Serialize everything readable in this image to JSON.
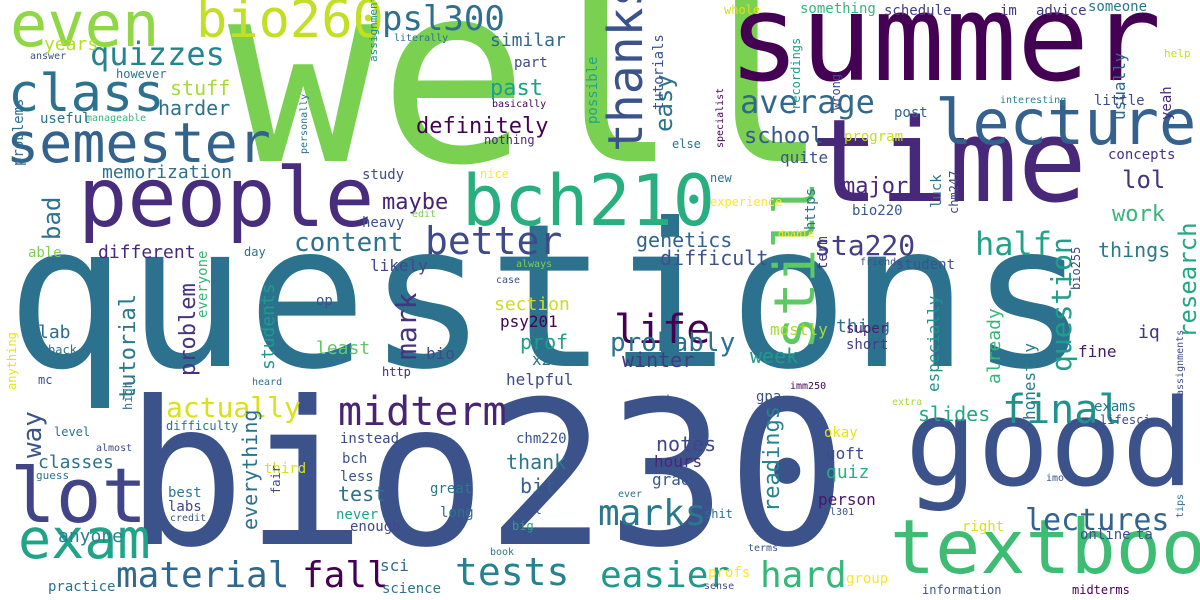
{
  "background": "#ffffff",
  "words": [
    {
      "text": "well",
      "color": "#7ad151"
    },
    {
      "text": "questions",
      "color": "#2c728e"
    },
    {
      "text": "bio230",
      "color": "#3b528b"
    },
    {
      "text": "summer",
      "color": "#440154"
    },
    {
      "text": "time",
      "color": "#482878"
    },
    {
      "text": "good",
      "color": "#3b528b"
    },
    {
      "text": "people",
      "color": "#472d7b"
    },
    {
      "text": "lecture",
      "color": "#34618d"
    },
    {
      "text": "textbook",
      "color": "#3fbc73"
    },
    {
      "text": "bch210",
      "color": "#29af7f"
    },
    {
      "text": "lot",
      "color": "#414487"
    },
    {
      "text": "semester",
      "color": "#33638d"
    },
    {
      "text": "exam",
      "color": "#20a386"
    },
    {
      "text": "even",
      "color": "#8fd744"
    },
    {
      "text": "class",
      "color": "#2c728e"
    },
    {
      "text": "bio260",
      "color": "#c2df23"
    },
    {
      "text": "midterm",
      "color": "#482475"
    },
    {
      "text": "still",
      "color": "#5ec962"
    },
    {
      "text": "thanks",
      "color": "#3b528b"
    },
    {
      "text": "tests",
      "color": "#26828e"
    },
    {
      "text": "material",
      "color": "#31688e"
    },
    {
      "text": "fall",
      "color": "#440154"
    },
    {
      "text": "easier",
      "color": "#1f9a8a"
    },
    {
      "text": "hard",
      "color": "#35b779"
    },
    {
      "text": "life",
      "color": "#440154"
    },
    {
      "text": "better",
      "color": "#3e4a89"
    },
    {
      "text": "final",
      "color": "#21918c"
    },
    {
      "text": "lectures",
      "color": "#33638d"
    },
    {
      "text": "marks",
      "color": "#2a788e"
    },
    {
      "text": "psl300",
      "color": "#2d708e"
    },
    {
      "text": "quizzes",
      "color": "#25858e"
    },
    {
      "text": "average",
      "color": "#31688e"
    },
    {
      "text": "half",
      "color": "#20a386"
    },
    {
      "text": "question",
      "color": "#1f9e89"
    },
    {
      "text": "research",
      "color": "#22a884"
    },
    {
      "text": "content",
      "color": "#2c728e"
    },
    {
      "text": "actually",
      "color": "#d8e219"
    },
    {
      "text": "way",
      "color": "#3b528b"
    },
    {
      "text": "mark",
      "color": "#46327e"
    },
    {
      "text": "probably",
      "color": "#2c728e"
    },
    {
      "text": "sta220",
      "color": "#433e85"
    },
    {
      "text": "definitely",
      "color": "#440154"
    },
    {
      "text": "past",
      "color": "#1f9e89"
    },
    {
      "text": "bad",
      "color": "#2c728e"
    },
    {
      "text": "easy",
      "color": "#2c728e"
    },
    {
      "text": "school",
      "color": "#38588c"
    },
    {
      "text": "major",
      "color": "#482878"
    },
    {
      "text": "lol",
      "color": "#46337f"
    },
    {
      "text": "work",
      "color": "#35b779"
    },
    {
      "text": "maybe",
      "color": "#482173"
    },
    {
      "text": "tutorial",
      "color": "#2a788e"
    },
    {
      "text": "problem",
      "color": "#46337f"
    },
    {
      "text": "everything",
      "color": "#2d708e"
    },
    {
      "text": "readings",
      "color": "#26828e"
    },
    {
      "text": "genetics",
      "color": "#33638d"
    },
    {
      "text": "difficult",
      "color": "#3b528b"
    },
    {
      "text": "memorization",
      "color": "#2d708e"
    },
    {
      "text": "different",
      "color": "#482878"
    },
    {
      "text": "harder",
      "color": "#2d708e"
    },
    {
      "text": "stuff",
      "color": "#a5db36"
    },
    {
      "text": "years",
      "color": "#b5de2b"
    },
    {
      "text": "similar",
      "color": "#31688e"
    },
    {
      "text": "students",
      "color": "#1f9a8a"
    },
    {
      "text": "prof",
      "color": "#1f9e89"
    },
    {
      "text": "section",
      "color": "#c8e020"
    },
    {
      "text": "winter",
      "color": "#443983"
    },
    {
      "text": "least",
      "color": "#5ec962"
    },
    {
      "text": "notes",
      "color": "#404688"
    },
    {
      "text": "thank",
      "color": "#2a788e"
    },
    {
      "text": "bit",
      "color": "#34618d"
    },
    {
      "text": "slides",
      "color": "#22a884"
    },
    {
      "text": "week",
      "color": "#1f9a8a"
    },
    {
      "text": "already",
      "color": "#35b779"
    },
    {
      "text": "things",
      "color": "#2a788e"
    },
    {
      "text": "test",
      "color": "#2d708e"
    },
    {
      "text": "classes",
      "color": "#2c728e"
    },
    {
      "text": "anyone",
      "color": "#26828e"
    },
    {
      "text": "lab",
      "color": "#31688e"
    },
    {
      "text": "likely",
      "color": "#3e4a89"
    },
    {
      "text": "helpful",
      "color": "#3e4a89"
    },
    {
      "text": "psy201",
      "color": "#440154"
    },
    {
      "text": "x200b",
      "color": "#2d708e"
    },
    {
      "text": "hours",
      "color": "#482878"
    },
    {
      "text": "grade",
      "color": "#38588c"
    },
    {
      "text": "quiz",
      "color": "#29af7f"
    },
    {
      "text": "uoft",
      "color": "#3e4a89"
    },
    {
      "text": "person",
      "color": "#481769"
    },
    {
      "text": "honestly",
      "color": "#287c8e"
    },
    {
      "text": "mostly",
      "color": "#a5db36"
    },
    {
      "text": "especially",
      "color": "#21918c"
    },
    {
      "text": "thing",
      "color": "#2c728e"
    },
    {
      "text": "super",
      "color": "#481f70"
    },
    {
      "text": "short",
      "color": "#433e85"
    },
    {
      "text": "fine",
      "color": "#48186a"
    },
    {
      "text": "iq",
      "color": "#46327e"
    },
    {
      "text": "exams",
      "color": "#2c728e"
    },
    {
      "text": "lifesci",
      "color": "#3e4a89"
    },
    {
      "text": "okay",
      "color": "#e5e419"
    },
    {
      "text": "term",
      "color": "#453781"
    },
    {
      "text": "bio255",
      "color": "#3e4a89"
    },
    {
      "text": "student",
      "color": "#3b528b"
    },
    {
      "text": "friends",
      "color": "#3b528b"
    },
    {
      "text": "help",
      "color": "#c8e020"
    },
    {
      "text": "yeah",
      "color": "#482878"
    },
    {
      "text": "usually",
      "color": "#31688e"
    },
    {
      "text": "someone",
      "color": "#2a788e"
    },
    {
      "text": "advice",
      "color": "#443983"
    },
    {
      "text": "im",
      "color": "#453781"
    },
    {
      "text": "schedule",
      "color": "#433e85"
    },
    {
      "text": "something",
      "color": "#35b779"
    },
    {
      "text": "whole",
      "color": "#d8e219"
    },
    {
      "text": "tutorials",
      "color": "#3b528b"
    },
    {
      "text": "possible",
      "color": "#20a386"
    },
    {
      "text": "recordings",
      "color": "#1f9e89"
    },
    {
      "text": "wrong",
      "color": "#3e4a89"
    },
    {
      "text": "specialist",
      "color": "#440154"
    },
    {
      "text": "interesting",
      "color": "#26828e"
    },
    {
      "text": "little",
      "color": "#3e4a89"
    },
    {
      "text": "concepts",
      "color": "#46327e"
    },
    {
      "text": "post",
      "color": "#33638d"
    },
    {
      "text": "program",
      "color": "#c2df23"
    },
    {
      "text": "quite",
      "color": "#3b528b"
    },
    {
      "text": "luck",
      "color": "#2d708e"
    },
    {
      "text": "chm247",
      "color": "#3e4a89"
    },
    {
      "text": "bio220",
      "color": "#38588c"
    },
    {
      "text": "https",
      "color": "#2c728e"
    },
    {
      "text": "experience",
      "color": "#fde725"
    },
    {
      "text": "doable",
      "color": "#fde725"
    },
    {
      "text": "new",
      "color": "#2d708e"
    },
    {
      "text": "else",
      "color": "#2d708e"
    },
    {
      "text": "nothing",
      "color": "#482878"
    },
    {
      "text": "basically",
      "color": "#440154"
    },
    {
      "text": "part",
      "color": "#3e4a89"
    },
    {
      "text": "literally",
      "color": "#2c728e"
    },
    {
      "text": "answer",
      "color": "#3b528b"
    },
    {
      "text": "however",
      "color": "#2c728e"
    },
    {
      "text": "useful",
      "color": "#2c728e"
    },
    {
      "text": "manageable",
      "color": "#35b779"
    },
    {
      "text": "assignment",
      "color": "#21918c"
    },
    {
      "text": "problems",
      "color": "#2d708e"
    },
    {
      "text": "study",
      "color": "#3e4a89"
    },
    {
      "text": "nice",
      "color": "#fde725"
    },
    {
      "text": "personally",
      "color": "#2c728e"
    },
    {
      "text": "heavy",
      "color": "#3b528b"
    },
    {
      "text": "edit",
      "color": "#7ad151"
    },
    {
      "text": "able",
      "color": "#7ad151"
    },
    {
      "text": "day",
      "color": "#2c728e"
    },
    {
      "text": "always",
      "color": "#7ad151"
    },
    {
      "text": "case",
      "color": "#3b528b"
    },
    {
      "text": "everyone",
      "color": "#35b779"
    },
    {
      "text": "op",
      "color": "#3b528b"
    },
    {
      "text": "back",
      "color": "#2c728e"
    },
    {
      "text": "mc",
      "color": "#3b528b"
    },
    {
      "text": "http",
      "color": "#482878"
    },
    {
      "text": "heard",
      "color": "#2d708e"
    },
    {
      "text": "bio",
      "color": "#3e4a89"
    },
    {
      "text": "high",
      "color": "#2d708e"
    },
    {
      "text": "difficulty",
      "color": "#2c728e"
    },
    {
      "text": "level",
      "color": "#2d708e"
    },
    {
      "text": "almost",
      "color": "#3e4a89"
    },
    {
      "text": "anything",
      "color": "#e5e419"
    },
    {
      "text": "guess",
      "color": "#2c728e"
    },
    {
      "text": "third",
      "color": "#d8e219"
    },
    {
      "text": "bch",
      "color": "#3b528b"
    },
    {
      "text": "less",
      "color": "#3b528b"
    },
    {
      "text": "sci",
      "color": "#2d708e"
    },
    {
      "text": "instead",
      "color": "#3e4a89"
    },
    {
      "text": "fair",
      "color": "#3e4a89"
    },
    {
      "text": "best",
      "color": "#2a788e"
    },
    {
      "text": "labs",
      "color": "#3e4a89"
    },
    {
      "text": "credit",
      "color": "#3b528b"
    },
    {
      "text": "never",
      "color": "#20a386"
    },
    {
      "text": "enough",
      "color": "#3e4a89"
    },
    {
      "text": "practice",
      "color": "#2c728e"
    },
    {
      "text": "science",
      "color": "#2c728e"
    },
    {
      "text": "great",
      "color": "#2a788e"
    },
    {
      "text": "long",
      "color": "#2c728e"
    },
    {
      "text": "psl",
      "color": "#3b528b"
    },
    {
      "text": "big",
      "color": "#20a386"
    },
    {
      "text": "book",
      "color": "#2a788e"
    },
    {
      "text": "chm220",
      "color": "#3b528b"
    },
    {
      "text": "end",
      "color": "#3b528b"
    },
    {
      "text": "gpa",
      "color": "#3b528b"
    },
    {
      "text": "imm250",
      "color": "#440154"
    },
    {
      "text": "ever",
      "color": "#2c728e"
    },
    {
      "text": "shit",
      "color": "#2d708e"
    },
    {
      "text": "profs",
      "color": "#fde725"
    },
    {
      "text": "terms",
      "color": "#3b528b"
    },
    {
      "text": "sense",
      "color": "#3e4a89"
    },
    {
      "text": "group",
      "color": "#fde725"
    },
    {
      "text": "information",
      "color": "#3b528b"
    },
    {
      "text": "midterms",
      "color": "#440154"
    },
    {
      "text": "online",
      "color": "#3b528b"
    },
    {
      "text": "ta",
      "color": "#3b528b"
    },
    {
      "text": "right",
      "color": "#d8e219"
    },
    {
      "text": "psl301",
      "color": "#3b528b"
    },
    {
      "text": "tips",
      "color": "#2c728e"
    },
    {
      "text": "imo",
      "color": "#3b528b"
    },
    {
      "text": "extra",
      "color": "#a5db36"
    },
    {
      "text": "assignments",
      "color": "#3e4a89"
    }
  ]
}
